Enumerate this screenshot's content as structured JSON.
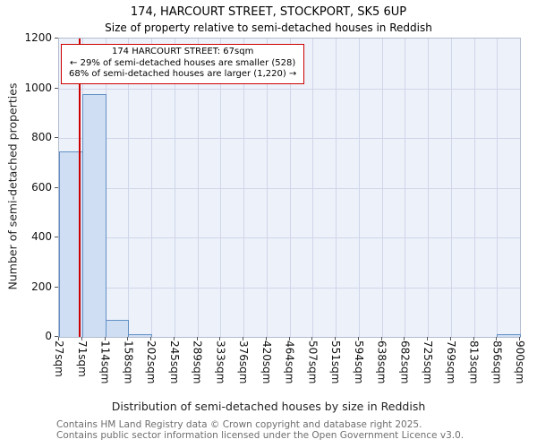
{
  "title": "174, HARCOURT STREET, STOCKPORT, SK5 6UP",
  "subtitle": "Size of property relative to semi-detached houses in Reddish",
  "annotation": {
    "line1": "174 HARCOURT STREET: 67sqm",
    "line2": "← 29% of semi-detached houses are smaller (528)",
    "line3": "68% of semi-detached houses are larger (1,220) →"
  },
  "footer": {
    "line1": "Contains HM Land Registry data © Crown copyright and database right 2025.",
    "line2": "Contains public sector information licensed under the Open Government Licence v3.0."
  },
  "chart_data": {
    "type": "bar",
    "title": "174, HARCOURT STREET, STOCKPORT, SK5 6UP",
    "subtitle": "Size of property relative to semi-detached houses in Reddish",
    "xlabel": "Distribution of semi-detached houses by size in Reddish",
    "ylabel": "Number of semi-detached properties",
    "ylim": [
      0,
      1200
    ],
    "yticks": [
      0,
      200,
      400,
      600,
      800,
      1000,
      1200
    ],
    "bin_labels": [
      "27sqm",
      "71sqm",
      "114sqm",
      "158sqm",
      "202sqm",
      "245sqm",
      "289sqm",
      "333sqm",
      "376sqm",
      "420sqm",
      "464sqm",
      "507sqm",
      "551sqm",
      "594sqm",
      "638sqm",
      "682sqm",
      "725sqm",
      "769sqm",
      "813sqm",
      "856sqm",
      "900sqm"
    ],
    "values": [
      745,
      975,
      70,
      10,
      0,
      0,
      0,
      0,
      0,
      0,
      0,
      0,
      0,
      0,
      0,
      0,
      0,
      0,
      0,
      10
    ],
    "marker_sqm": 67,
    "grid": true,
    "legend": "none",
    "colors": {
      "bar_fill": "#cfdef3",
      "bar_border": "#6390c5",
      "marker": "#cc0000",
      "plot_bg": "#edf1fa",
      "grid": "#cfd6e9"
    }
  }
}
